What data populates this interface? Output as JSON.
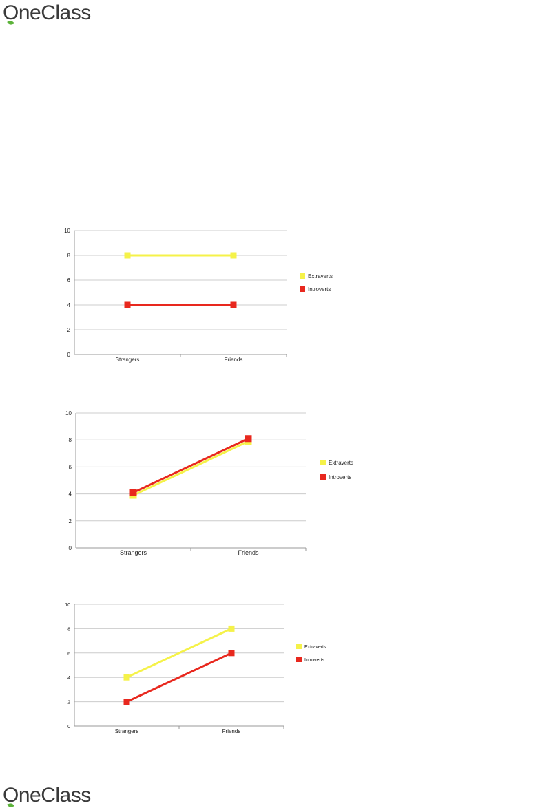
{
  "brand": {
    "name": "OneClass",
    "leaf_color": "#5cb33a",
    "text_color": "#3a3a3a"
  },
  "colors": {
    "extraverts": "#f5f249",
    "introverts": "#e8281e",
    "grid": "#cccccc",
    "axis": "#999999",
    "rule": "#5b8fc7"
  },
  "chart_data": [
    {
      "type": "line",
      "categories": [
        "Strangers",
        "Friends"
      ],
      "series": [
        {
          "name": "Extraverts",
          "values": [
            8,
            8
          ]
        },
        {
          "name": "Introverts",
          "values": [
            4,
            4
          ]
        }
      ],
      "yticks": [
        "0",
        "2",
        "4",
        "6",
        "8",
        "10"
      ],
      "ylim": [
        0,
        10
      ],
      "grid": true,
      "legend": "right"
    },
    {
      "type": "line",
      "categories": [
        "Strangers",
        "Friends"
      ],
      "series": [
        {
          "name": "Extraverts",
          "values": [
            3.9,
            7.9
          ]
        },
        {
          "name": "Introverts",
          "values": [
            4.1,
            8.1
          ]
        }
      ],
      "yticks": [
        "0",
        "2",
        "4",
        "6",
        "8",
        "10"
      ],
      "ylim": [
        0,
        10
      ],
      "grid": true,
      "legend": "right"
    },
    {
      "type": "line",
      "categories": [
        "Strangers",
        "Friends"
      ],
      "series": [
        {
          "name": "Extraverts",
          "values": [
            4,
            8
          ]
        },
        {
          "name": "Introverts",
          "values": [
            2,
            6
          ]
        }
      ],
      "yticks": [
        "0",
        "2",
        "4",
        "6",
        "8",
        "10"
      ],
      "ylim": [
        0,
        10
      ],
      "grid": true,
      "legend": "right"
    }
  ]
}
